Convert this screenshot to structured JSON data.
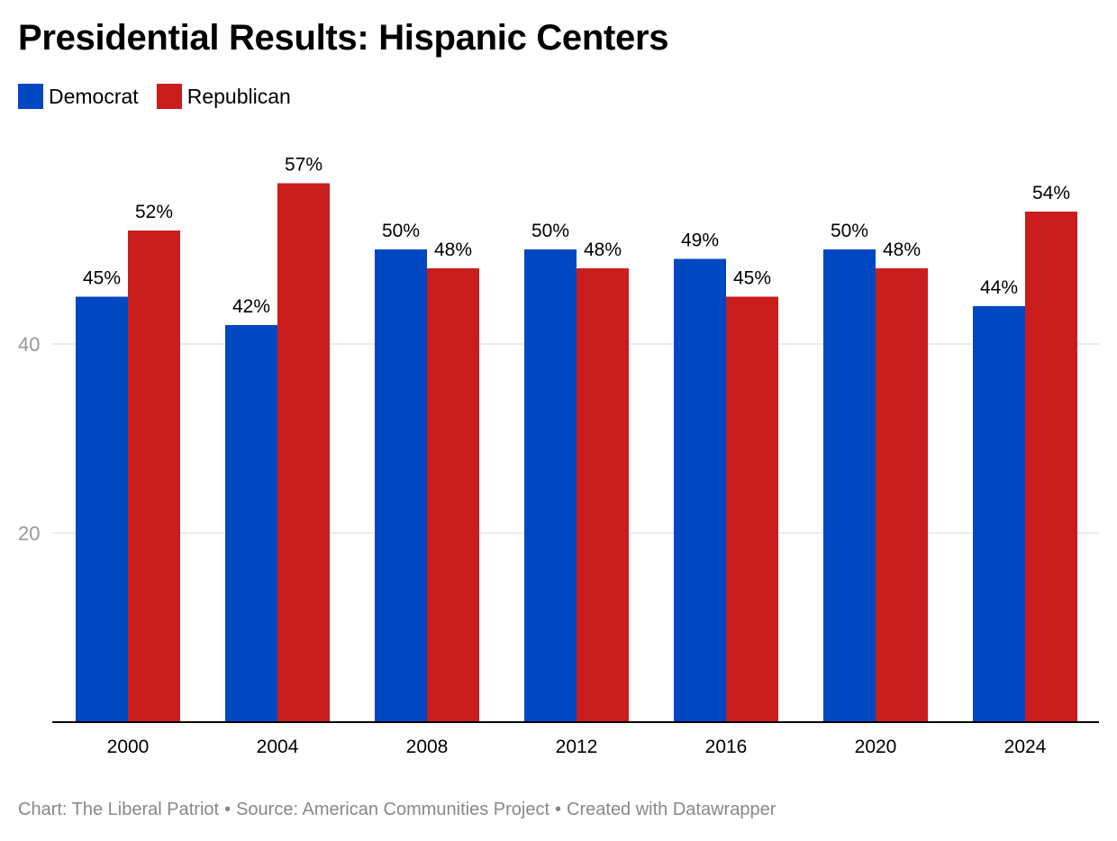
{
  "title": "Presidential Results: Hispanic Centers",
  "footer": {
    "chart_credit": "Chart: The Liberal Patriot",
    "source": "Source: American Communities Project",
    "created_with": "Created with Datawrapper",
    "separator": "•"
  },
  "colors": {
    "democrat": "#0047c2",
    "republican": "#c91d1e",
    "gridline": "#e6e6e6",
    "axis_line": "#000000",
    "tick_label": "#999999"
  },
  "chart_data": {
    "type": "bar",
    "title": "Presidential Results: Hispanic Centers",
    "xlabel": "",
    "ylabel": "",
    "categories": [
      "2000",
      "2004",
      "2008",
      "2012",
      "2016",
      "2020",
      "2024"
    ],
    "series": [
      {
        "name": "Democrat",
        "color": "#0047c2",
        "values": [
          45,
          42,
          50,
          50,
          49,
          50,
          44
        ],
        "labels": [
          "45%",
          "42%",
          "50%",
          "50%",
          "49%",
          "50%",
          "44%"
        ]
      },
      {
        "name": "Republican",
        "color": "#c91d1e",
        "values": [
          52,
          57,
          48,
          48,
          45,
          48,
          54
        ],
        "labels": [
          "52%",
          "57%",
          "48%",
          "48%",
          "45%",
          "48%",
          "54%"
        ]
      }
    ],
    "ylim": [
      0,
      60
    ],
    "yticks": [
      20,
      40
    ],
    "ytick_labels": [
      "20",
      "40"
    ],
    "grid": true,
    "legend": "top-left"
  }
}
